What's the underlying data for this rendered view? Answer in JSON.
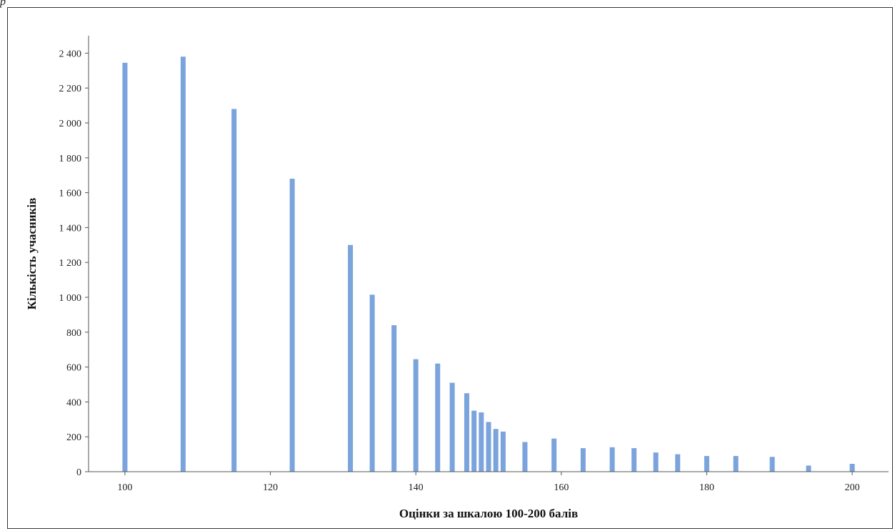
{
  "corner_mark": "р",
  "chart_data": {
    "type": "bar",
    "title": "",
    "xlabel": "Оцінки за шкалою 100-200 балів",
    "ylabel": "Кількість учасників",
    "xlim": [
      95,
      205
    ],
    "ylim": [
      0,
      2500
    ],
    "xticks": [
      100,
      120,
      140,
      160,
      180,
      200
    ],
    "xtick_labels": [
      "100",
      "120",
      "140",
      "160",
      "180",
      "200"
    ],
    "yticks": [
      0,
      200,
      400,
      600,
      800,
      1000,
      1200,
      1400,
      1600,
      1800,
      2000,
      2200,
      2400
    ],
    "ytick_labels": [
      "0",
      "200",
      "400",
      "600",
      "800",
      "1 000",
      "1 200",
      "1 400",
      "1 600",
      "1 800",
      "2 000",
      "2 200",
      "2 400"
    ],
    "bar_color": "#7ba3dc",
    "grid": false,
    "legend": "none",
    "points": [
      {
        "x": 100,
        "y": 2345
      },
      {
        "x": 108,
        "y": 2380
      },
      {
        "x": 115,
        "y": 2080
      },
      {
        "x": 123,
        "y": 1680
      },
      {
        "x": 131,
        "y": 1300
      },
      {
        "x": 134,
        "y": 1015
      },
      {
        "x": 137,
        "y": 840
      },
      {
        "x": 140,
        "y": 645
      },
      {
        "x": 143,
        "y": 620
      },
      {
        "x": 145,
        "y": 510
      },
      {
        "x": 147,
        "y": 450
      },
      {
        "x": 148,
        "y": 350
      },
      {
        "x": 149,
        "y": 340
      },
      {
        "x": 150,
        "y": 285
      },
      {
        "x": 151,
        "y": 245
      },
      {
        "x": 152,
        "y": 230
      },
      {
        "x": 155,
        "y": 170
      },
      {
        "x": 159,
        "y": 190
      },
      {
        "x": 163,
        "y": 135
      },
      {
        "x": 167,
        "y": 140
      },
      {
        "x": 170,
        "y": 135
      },
      {
        "x": 173,
        "y": 110
      },
      {
        "x": 176,
        "y": 100
      },
      {
        "x": 180,
        "y": 90
      },
      {
        "x": 184,
        "y": 90
      },
      {
        "x": 189,
        "y": 85
      },
      {
        "x": 194,
        "y": 35
      },
      {
        "x": 200,
        "y": 45
      }
    ]
  }
}
